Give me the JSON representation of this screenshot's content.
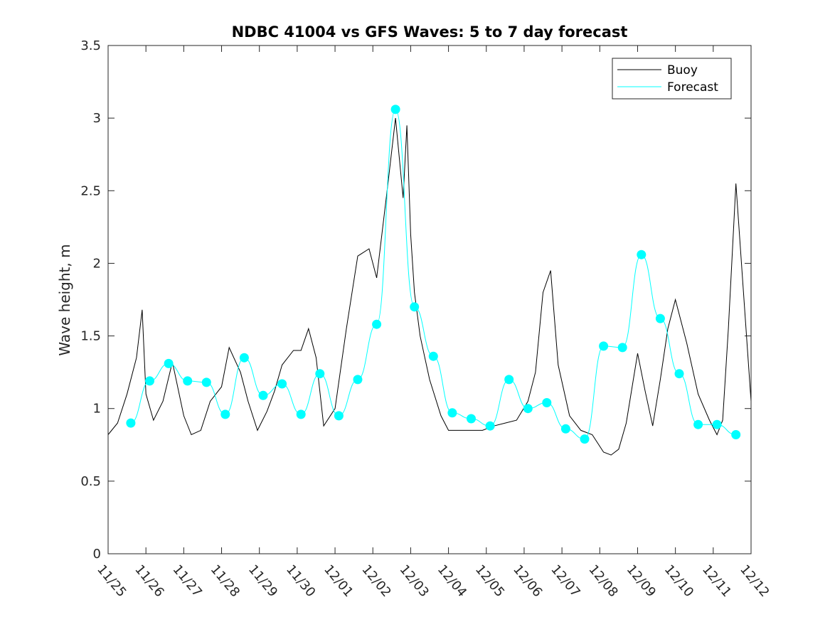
{
  "chart_data": {
    "type": "line",
    "title": "NDBC 41004 vs GFS Waves: 5 to 7 day forecast",
    "xlabel": "",
    "ylabel": "Wave height, m",
    "xlim": [
      0,
      17
    ],
    "ylim": [
      0,
      3.5
    ],
    "x_ticks": [
      0,
      1,
      2,
      3,
      4,
      5,
      6,
      7,
      8,
      9,
      10,
      11,
      12,
      13,
      14,
      15,
      16,
      17
    ],
    "x_tick_labels": [
      "11/25",
      "11/26",
      "11/27",
      "11/28",
      "11/29",
      "11/30",
      "12/01",
      "12/02",
      "12/03",
      "12/04",
      "12/05",
      "12/06",
      "12/07",
      "12/08",
      "12/09",
      "12/10",
      "12/11",
      "12/12"
    ],
    "y_ticks": [
      0,
      0.5,
      1,
      1.5,
      2,
      2.5,
      3,
      3.5
    ],
    "y_tick_labels": [
      "0",
      "0.5",
      "1",
      "1.5",
      "2",
      "2.5",
      "3",
      "3.5"
    ],
    "legend": {
      "position": "top-right",
      "entries": [
        {
          "label": "Buoy",
          "color": "#000000"
        },
        {
          "label": "Forecast",
          "color": "#00ffff"
        }
      ]
    },
    "series": [
      {
        "name": "Buoy",
        "color": "#000000",
        "x": [
          0,
          0.25,
          0.5,
          0.75,
          0.9,
          1.0,
          1.2,
          1.45,
          1.7,
          2.0,
          2.2,
          2.45,
          2.7,
          3.0,
          3.2,
          3.5,
          3.7,
          3.95,
          4.2,
          4.4,
          4.6,
          4.9,
          5.1,
          5.3,
          5.5,
          5.7,
          6.0,
          6.3,
          6.6,
          6.9,
          7.1,
          7.4,
          7.6,
          7.8,
          7.9,
          8.0,
          8.1,
          8.25,
          8.5,
          8.8,
          9.0,
          9.3,
          9.6,
          9.9,
          10.2,
          10.5,
          10.8,
          11.1,
          11.3,
          11.5,
          11.7,
          11.9,
          12.2,
          12.5,
          12.8,
          13.1,
          13.3,
          13.5,
          13.7,
          14.0,
          14.2,
          14.4,
          14.6,
          14.8,
          15.0,
          15.3,
          15.6,
          15.9,
          16.1,
          16.25,
          16.4,
          16.6,
          17.0
        ],
        "y": [
          0.82,
          0.9,
          1.1,
          1.35,
          1.68,
          1.1,
          0.92,
          1.05,
          1.32,
          0.95,
          0.82,
          0.85,
          1.05,
          1.15,
          1.42,
          1.25,
          1.05,
          0.85,
          0.98,
          1.12,
          1.3,
          1.4,
          1.4,
          1.55,
          1.35,
          0.88,
          1.0,
          1.55,
          2.05,
          2.1,
          1.9,
          2.55,
          3.0,
          2.45,
          2.95,
          2.2,
          1.8,
          1.5,
          1.2,
          0.95,
          0.85,
          0.85,
          0.85,
          0.85,
          0.88,
          0.9,
          0.92,
          1.05,
          1.25,
          1.8,
          1.95,
          1.3,
          0.95,
          0.85,
          0.82,
          0.7,
          0.68,
          0.72,
          0.9,
          1.38,
          1.12,
          0.88,
          1.2,
          1.55,
          1.75,
          1.45,
          1.1,
          0.92,
          0.82,
          0.92,
          1.55,
          2.55,
          1.05
        ]
      },
      {
        "name": "Forecast",
        "color": "#00ffff",
        "x": [
          0.6,
          1.1,
          1.6,
          2.1,
          2.6,
          3.1,
          3.6,
          4.1,
          4.6,
          5.1,
          5.6,
          6.1,
          6.6,
          7.1,
          7.6,
          8.1,
          8.6,
          9.1,
          9.6,
          10.1,
          10.6,
          11.1,
          11.6,
          12.1,
          12.6,
          13.1,
          13.6,
          14.1,
          14.6,
          15.1,
          15.6,
          16.1,
          16.6
        ],
        "y": [
          0.9,
          1.19,
          1.31,
          1.19,
          1.18,
          0.96,
          1.35,
          1.09,
          1.17,
          0.96,
          1.24,
          0.95,
          1.2,
          1.58,
          3.06,
          1.7,
          1.36,
          0.97,
          0.93,
          0.88,
          1.2,
          1.0,
          1.04,
          0.86,
          0.79,
          1.43,
          1.42,
          2.06,
          1.62,
          1.24,
          0.89,
          0.89,
          0.82
        ]
      }
    ]
  }
}
